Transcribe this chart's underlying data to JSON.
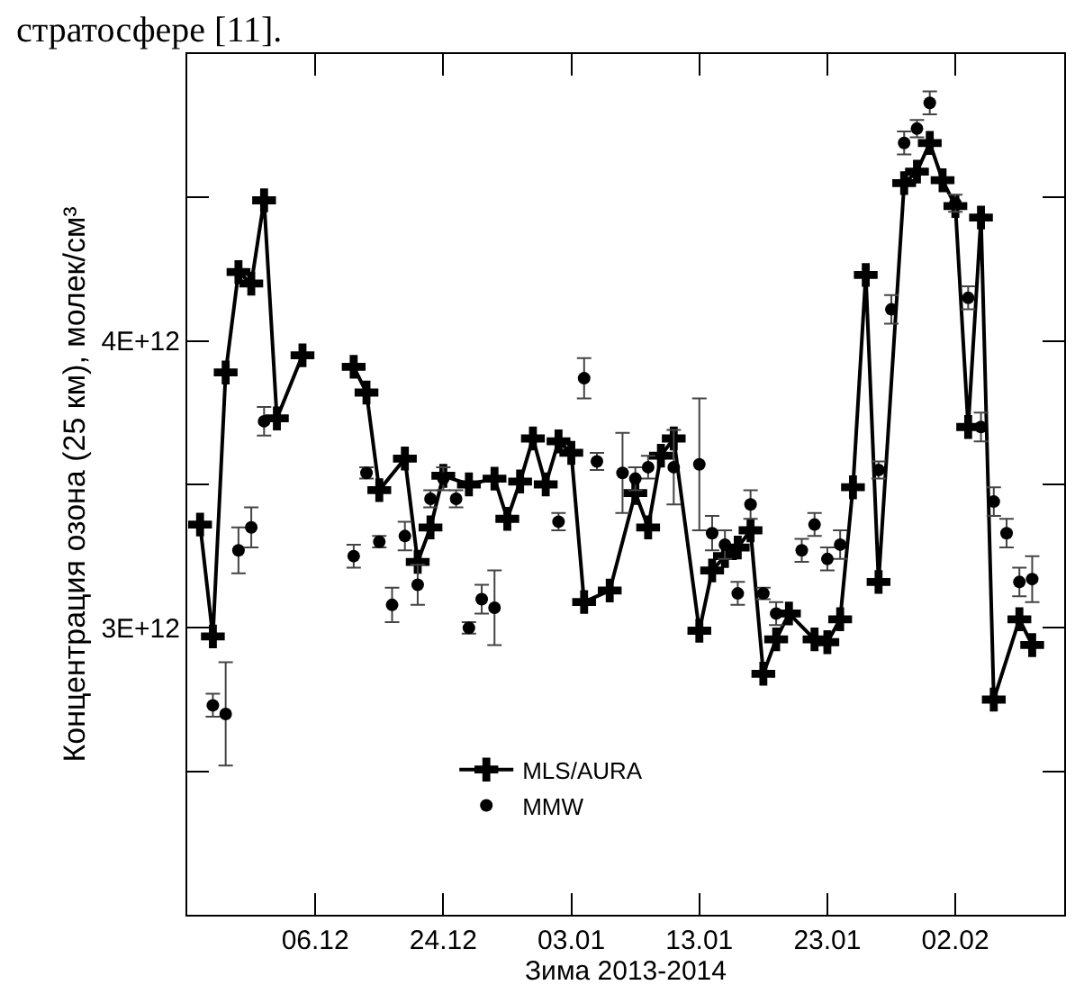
{
  "chart_data": {
    "type": "line",
    "xlabel": "Зима 2013-2014",
    "ylabel": "Концентрация озона (25 км), молек/см³",
    "annotations": [
      "стратосфере [11]."
    ],
    "xlim": [
      "2013-12-04",
      "2014-02-10T12:00"
    ],
    "xticks": [
      {
        "value": "2013-12-14",
        "label": "06.12"
      },
      {
        "value": "2013-12-24",
        "label": "24.12"
      },
      {
        "value": "2014-01-03",
        "label": "03.01"
      },
      {
        "value": "2014-01-13",
        "label": "13.01"
      },
      {
        "value": "2014-01-23",
        "label": "23.01"
      },
      {
        "value": "2014-02-02",
        "label": "02.02"
      }
    ],
    "ylim": [
      2000000000000.0,
      5000000000000.0
    ],
    "yticks": [
      {
        "value": 2500000000000.0,
        "label": null
      },
      {
        "value": 3000000000000.0,
        "label": "3E+12"
      },
      {
        "value": 3500000000000.0,
        "label": null
      },
      {
        "value": 4000000000000.0,
        "label": "4E+12"
      },
      {
        "value": 4500000000000.0,
        "label": null
      }
    ],
    "legend": "bottom",
    "series": [
      {
        "name": "MLS/AURA",
        "marker": "cross",
        "line_style": "solid",
        "color": "#000000",
        "x": [
          "2013-12-05",
          "2013-12-06",
          "2013-12-07",
          "2013-12-08",
          "2013-12-09",
          "2013-12-10",
          "2013-12-11",
          "2013-12-13",
          "2013-12-15",
          "2013-12-17",
          "2013-12-18",
          "2013-12-19",
          "2013-12-21",
          "2013-12-22",
          "2013-12-23",
          "2013-12-24",
          "2013-12-26",
          "2013-12-28",
          "2013-12-29",
          "2013-12-30",
          "2013-12-31",
          "2014-01-01",
          "2014-01-02",
          "2014-01-03",
          "2014-01-04",
          "2014-01-06",
          "2014-01-08",
          "2014-01-09",
          "2014-01-10",
          "2014-01-11",
          "2014-01-13",
          "2014-01-14",
          "2014-01-15",
          "2014-01-16",
          "2014-01-17",
          "2014-01-18",
          "2014-01-19",
          "2014-01-20",
          "2014-01-22",
          "2014-01-23",
          "2014-01-24",
          "2014-01-25",
          "2014-01-26",
          "2014-01-27",
          "2014-01-29",
          "2014-01-30",
          "2014-01-31",
          "2014-02-01",
          "2014-02-02",
          "2014-02-03",
          "2014-02-04",
          "2014-02-05",
          "2014-02-07",
          "2014-02-08"
        ],
        "values": [
          3360000000000.0,
          2970000000000.0,
          3890000000000.0,
          4240000000000.0,
          4200000000000.0,
          4490000000000.0,
          3730000000000.0,
          3950000000000.0,
          null,
          3910000000000.0,
          3820000000000.0,
          3480000000000.0,
          3590000000000.0,
          3230000000000.0,
          3350000000000.0,
          3530000000000.0,
          3500000000000.0,
          3520000000000.0,
          3380000000000.0,
          3510000000000.0,
          3660000000000.0,
          3500000000000.0,
          3650000000000.0,
          3610000000000.0,
          3090000000000.0,
          3130000000000.0,
          3470000000000.0,
          3350000000000.0,
          3600000000000.0,
          3660000000000.0,
          2990000000000.0,
          3200000000000.0,
          3250000000000.0,
          3280000000000.0,
          3340000000000.0,
          2840000000000.0,
          2960000000000.0,
          3050000000000.0,
          2960000000000.0,
          2950000000000.0,
          3030000000000.0,
          3490000000000.0,
          4230000000000.0,
          3160000000000.0,
          4550000000000.0,
          4590000000000.0,
          4690000000000.0,
          4560000000000.0,
          4470000000000.0,
          3700000000000.0,
          4430000000000.0,
          2750000000000.0,
          3030000000000.0,
          2940000000000.0
        ]
      },
      {
        "name": "MMW",
        "type": "scatter",
        "marker": "circle",
        "color": "#000000",
        "x": [
          "2013-12-06",
          "2013-12-07",
          "2013-12-08",
          "2013-12-09",
          "2013-12-10",
          "2013-12-17",
          "2013-12-18",
          "2013-12-19",
          "2013-12-20",
          "2013-12-21",
          "2013-12-22",
          "2013-12-23",
          "2013-12-24",
          "2013-12-25",
          "2013-12-26",
          "2013-12-27",
          "2013-12-28",
          "2014-01-02",
          "2014-01-04",
          "2014-01-05",
          "2014-01-07",
          "2014-01-08",
          "2014-01-09",
          "2014-01-11",
          "2014-01-13",
          "2014-01-14",
          "2014-01-15",
          "2014-01-16",
          "2014-01-17",
          "2014-01-18",
          "2014-01-19",
          "2014-01-21",
          "2014-01-22",
          "2014-01-23",
          "2014-01-24",
          "2014-01-27",
          "2014-01-28",
          "2014-01-29",
          "2014-01-30",
          "2014-01-31",
          "2014-02-02",
          "2014-02-03",
          "2014-02-04",
          "2014-02-05",
          "2014-02-06",
          "2014-02-07",
          "2014-02-08"
        ],
        "values": [
          2730000000000.0,
          2700000000000.0,
          3270000000000.0,
          3350000000000.0,
          3720000000000.0,
          3250000000000.0,
          3540000000000.0,
          3300000000000.0,
          3080000000000.0,
          3320000000000.0,
          3150000000000.0,
          3450000000000.0,
          3520000000000.0,
          3450000000000.0,
          3000000000000.0,
          3100000000000.0,
          3070000000000.0,
          3370000000000.0,
          3870000000000.0,
          3580000000000.0,
          3540000000000.0,
          3520000000000.0,
          3560000000000.0,
          3560000000000.0,
          3570000000000.0,
          3330000000000.0,
          3290000000000.0,
          3120000000000.0,
          3430000000000.0,
          3120000000000.0,
          3050000000000.0,
          3270000000000.0,
          3360000000000.0,
          3240000000000.0,
          3290000000000.0,
          3550000000000.0,
          4110000000000.0,
          4690000000000.0,
          4740000000000.0,
          4830000000000.0,
          4480000000000.0,
          4150000000000.0,
          3700000000000.0,
          3440000000000.0,
          3330000000000.0,
          3160000000000.0,
          3170000000000.0
        ],
        "errors": [
          40000000000.0,
          180000000000.0,
          80000000000.0,
          70000000000.0,
          50000000000.0,
          40000000000.0,
          20000000000.0,
          20000000000.0,
          60000000000.0,
          50000000000.0,
          70000000000.0,
          30000000000.0,
          40000000000.0,
          30000000000.0,
          20000000000.0,
          50000000000.0,
          130000000000.0,
          30000000000.0,
          70000000000.0,
          30000000000.0,
          140000000000.0,
          40000000000.0,
          40000000000.0,
          130000000000.0,
          230000000000.0,
          60000000000.0,
          50000000000.0,
          40000000000.0,
          50000000000.0,
          20000000000.0,
          40000000000.0,
          40000000000.0,
          40000000000.0,
          40000000000.0,
          50000000000.0,
          30000000000.0,
          50000000000.0,
          40000000000.0,
          30000000000.0,
          40000000000.0,
          30000000000.0,
          40000000000.0,
          50000000000.0,
          50000000000.0,
          50000000000.0,
          50000000000.0,
          80000000000.0
        ]
      }
    ]
  }
}
